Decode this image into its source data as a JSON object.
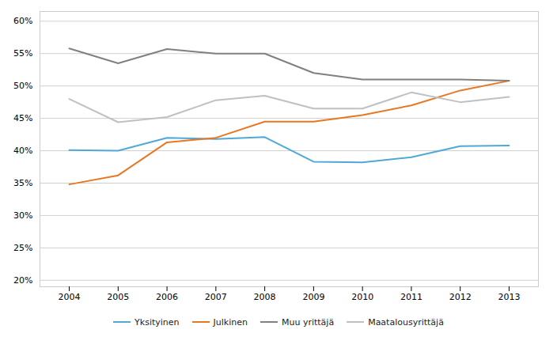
{
  "chart_data": {
    "type": "line",
    "x": [
      2004,
      2005,
      2006,
      2007,
      2008,
      2009,
      2010,
      2011,
      2012,
      2013
    ],
    "series": [
      {
        "name": "Yksityinen",
        "color": "#4fa8d8",
        "values": [
          0.401,
          0.4,
          0.42,
          0.418,
          0.421,
          0.383,
          0.382,
          0.39,
          0.407,
          0.408
        ]
      },
      {
        "name": "Julkinen",
        "color": "#E87722",
        "values": [
          0.348,
          0.362,
          0.413,
          0.42,
          0.445,
          0.445,
          0.455,
          0.47,
          0.493,
          0.508
        ]
      },
      {
        "name": "Muu yrittäjä",
        "color": "#808080",
        "values": [
          0.558,
          0.535,
          0.557,
          0.55,
          0.55,
          0.52,
          0.51,
          0.51,
          0.51,
          0.508
        ]
      },
      {
        "name": "Maatalousyrittäjä",
        "color": "#C0C0C0",
        "values": [
          0.48,
          0.444,
          0.452,
          0.478,
          0.485,
          0.465,
          0.465,
          0.49,
          0.475,
          0.483
        ]
      }
    ],
    "xlim": [
      2003.4,
      2013.6
    ],
    "xticks": [
      2004,
      2005,
      2006,
      2007,
      2008,
      2009,
      2010,
      2011,
      2012,
      2013
    ],
    "ylim": [
      0.19,
      0.615
    ],
    "yticks": [
      {
        "value": 0.2,
        "label": "20%"
      },
      {
        "value": 0.25,
        "label": "25%"
      },
      {
        "value": 0.3,
        "label": "30%"
      },
      {
        "value": 0.35,
        "label": "35%"
      },
      {
        "value": 0.4,
        "label": "40%"
      },
      {
        "value": 0.45,
        "label": "45%"
      },
      {
        "value": 0.5,
        "label": "50%"
      },
      {
        "value": 0.55,
        "label": "55%"
      },
      {
        "value": 0.6,
        "label": "60%"
      }
    ],
    "grid": true,
    "legend": "bottom"
  }
}
